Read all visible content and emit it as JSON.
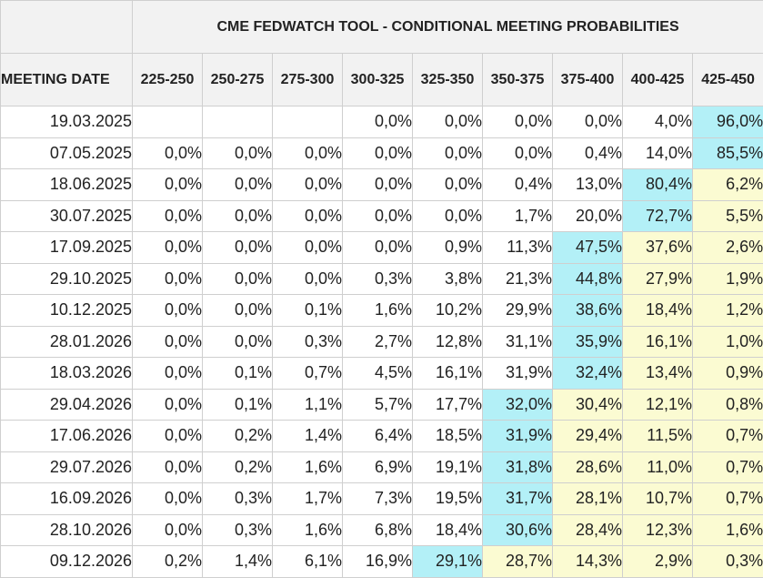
{
  "title": "CME FEDWATCH TOOL - CONDITIONAL MEETING PROBABILITIES",
  "date_header": "MEETING DATE",
  "columns": [
    "225-250",
    "250-275",
    "275-300",
    "300-325",
    "325-350",
    "350-375",
    "375-400",
    "400-425",
    "425-450"
  ],
  "colors": {
    "highlight_max": "#b3f0f7",
    "highlight_above": "#fbfbd2",
    "header_bg": "#f2f2f2",
    "grid": "#cfcfcf"
  },
  "rows": [
    {
      "date": "19.03.2025",
      "values": [
        "",
        "",
        "",
        "0,0%",
        "0,0%",
        "0,0%",
        "0,0%",
        "4,0%",
        "96,0%"
      ],
      "max_col": 8
    },
    {
      "date": "07.05.2025",
      "values": [
        "0,0%",
        "0,0%",
        "0,0%",
        "0,0%",
        "0,0%",
        "0,0%",
        "0,4%",
        "14,0%",
        "85,5%"
      ],
      "max_col": 8
    },
    {
      "date": "18.06.2025",
      "values": [
        "0,0%",
        "0,0%",
        "0,0%",
        "0,0%",
        "0,0%",
        "0,4%",
        "13,0%",
        "80,4%",
        "6,2%"
      ],
      "max_col": 7
    },
    {
      "date": "30.07.2025",
      "values": [
        "0,0%",
        "0,0%",
        "0,0%",
        "0,0%",
        "0,0%",
        "1,7%",
        "20,0%",
        "72,7%",
        "5,5%"
      ],
      "max_col": 7
    },
    {
      "date": "17.09.2025",
      "values": [
        "0,0%",
        "0,0%",
        "0,0%",
        "0,0%",
        "0,9%",
        "11,3%",
        "47,5%",
        "37,6%",
        "2,6%"
      ],
      "max_col": 6
    },
    {
      "date": "29.10.2025",
      "values": [
        "0,0%",
        "0,0%",
        "0,0%",
        "0,3%",
        "3,8%",
        "21,3%",
        "44,8%",
        "27,9%",
        "1,9%"
      ],
      "max_col": 6
    },
    {
      "date": "10.12.2025",
      "values": [
        "0,0%",
        "0,0%",
        "0,1%",
        "1,6%",
        "10,2%",
        "29,9%",
        "38,6%",
        "18,4%",
        "1,2%"
      ],
      "max_col": 6
    },
    {
      "date": "28.01.2026",
      "values": [
        "0,0%",
        "0,0%",
        "0,3%",
        "2,7%",
        "12,8%",
        "31,1%",
        "35,9%",
        "16,1%",
        "1,0%"
      ],
      "max_col": 6
    },
    {
      "date": "18.03.2026",
      "values": [
        "0,0%",
        "0,1%",
        "0,7%",
        "4,5%",
        "16,1%",
        "31,9%",
        "32,4%",
        "13,4%",
        "0,9%"
      ],
      "max_col": 6
    },
    {
      "date": "29.04.2026",
      "values": [
        "0,0%",
        "0,1%",
        "1,1%",
        "5,7%",
        "17,7%",
        "32,0%",
        "30,4%",
        "12,1%",
        "0,8%"
      ],
      "max_col": 5
    },
    {
      "date": "17.06.2026",
      "values": [
        "0,0%",
        "0,2%",
        "1,4%",
        "6,4%",
        "18,5%",
        "31,9%",
        "29,4%",
        "11,5%",
        "0,7%"
      ],
      "max_col": 5
    },
    {
      "date": "29.07.2026",
      "values": [
        "0,0%",
        "0,2%",
        "1,6%",
        "6,9%",
        "19,1%",
        "31,8%",
        "28,6%",
        "11,0%",
        "0,7%"
      ],
      "max_col": 5
    },
    {
      "date": "16.09.2026",
      "values": [
        "0,0%",
        "0,3%",
        "1,7%",
        "7,3%",
        "19,5%",
        "31,7%",
        "28,1%",
        "10,7%",
        "0,7%"
      ],
      "max_col": 5
    },
    {
      "date": "28.10.2026",
      "values": [
        "0,0%",
        "0,3%",
        "1,6%",
        "6,8%",
        "18,4%",
        "30,6%",
        "28,4%",
        "12,3%",
        "1,6%"
      ],
      "max_col": 5
    },
    {
      "date": "09.12.2026",
      "values": [
        "0,2%",
        "1,4%",
        "6,1%",
        "16,9%",
        "29,1%",
        "28,7%",
        "14,3%",
        "2,9%",
        "0,3%"
      ],
      "max_col": 4
    }
  ]
}
